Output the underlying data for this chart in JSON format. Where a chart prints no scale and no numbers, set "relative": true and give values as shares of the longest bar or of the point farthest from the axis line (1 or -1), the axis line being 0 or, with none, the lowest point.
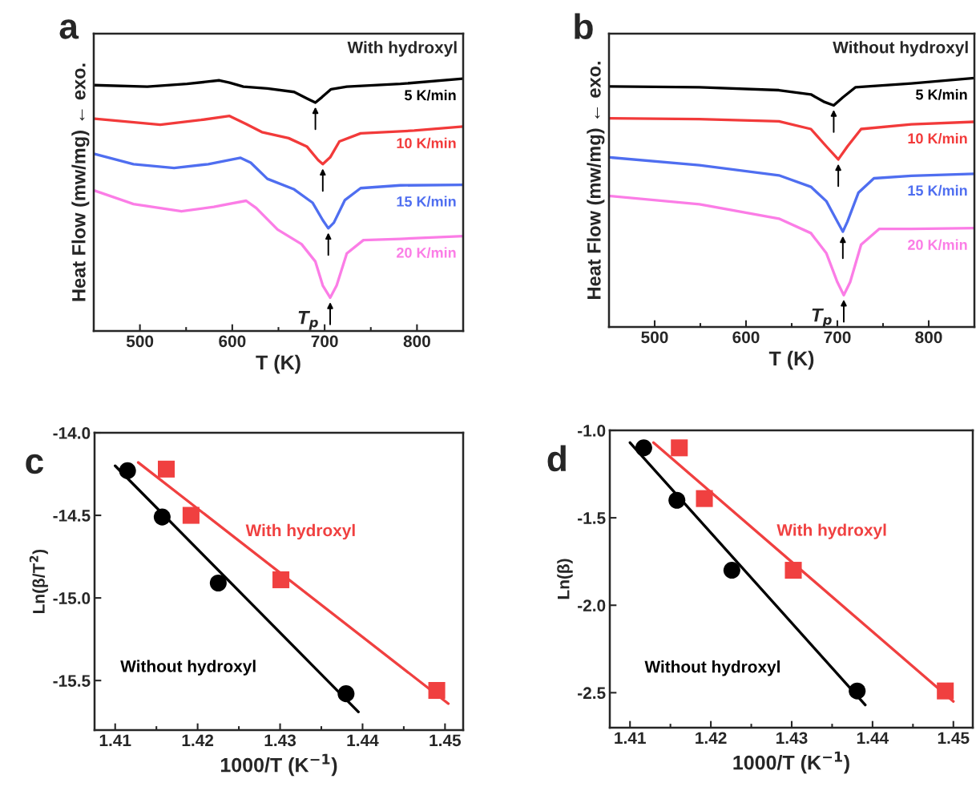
{
  "chart_data": [
    {
      "type": "line",
      "title": "a",
      "xlabel": "T (K)",
      "ylabel": "Heat Flow (mw/mg) ← exo.",
      "relative": true,
      "tick_labels": "x",
      "xlim": [
        450,
        850
      ],
      "xticks": [
        500,
        600,
        700,
        800
      ],
      "line_style": "solid",
      "annotations": [
        "With hydroxyl",
        {
          "text": "T$_{p}$",
          "x": 706,
          "y": 0.132
        }
      ],
      "series": [
        {
          "name": "5 K/min",
          "color": "#000000",
          "x": [
            450,
            508,
            551,
            586,
            597,
            612,
            638,
            667,
            681,
            690,
            697,
            707,
            724,
            782,
            850
          ],
          "values": [
            0.974,
            0.968,
            0.979,
            0.993,
            0.984,
            0.968,
            0.961,
            0.947,
            0.921,
            0.905,
            0.926,
            0.958,
            0.968,
            0.979,
            1.0
          ]
        },
        {
          "name": "10 K/min",
          "color": "#f23a3a",
          "x": [
            451,
            522,
            566,
            597,
            615,
            632,
            661,
            681,
            693,
            698,
            706,
            716,
            739,
            797,
            850
          ],
          "values": [
            0.841,
            0.817,
            0.836,
            0.852,
            0.82,
            0.788,
            0.764,
            0.73,
            0.677,
            0.661,
            0.688,
            0.751,
            0.783,
            0.794,
            0.81
          ]
        },
        {
          "name": "15 K/min",
          "color": "#4f6ef0",
          "x": [
            451,
            493,
            537,
            574,
            609,
            620,
            638,
            667,
            687,
            698,
            704,
            710,
            722,
            739,
            782,
            850
          ],
          "values": [
            0.701,
            0.661,
            0.646,
            0.661,
            0.686,
            0.667,
            0.603,
            0.561,
            0.508,
            0.439,
            0.407,
            0.429,
            0.519,
            0.566,
            0.577,
            0.579
          ]
        },
        {
          "name": "20 K/min",
          "color": "#fb7de6",
          "x": [
            451,
            493,
            545,
            580,
            615,
            626,
            649,
            675,
            690,
            698,
            706,
            713,
            724,
            742,
            782,
            850
          ],
          "values": [
            0.556,
            0.503,
            0.474,
            0.492,
            0.516,
            0.487,
            0.402,
            0.344,
            0.275,
            0.18,
            0.132,
            0.18,
            0.307,
            0.36,
            0.365,
            0.376
          ]
        }
      ]
    },
    {
      "type": "line",
      "title": "b",
      "xlabel": "T (K)",
      "ylabel": "Heat Flow (mw/mg) ← exo.",
      "relative": true,
      "tick_labels": "x",
      "xlim": [
        450,
        850
      ],
      "xticks": [
        500,
        600,
        700,
        800
      ],
      "line_style": "solid",
      "annotations": [
        "Without hydroxyl",
        {
          "text": "T$_{p}$",
          "x": 707,
          "y": 0.128
        }
      ],
      "series": [
        {
          "name": "5 K/min",
          "color": "#000000",
          "x": [
            451,
            549,
            636,
            671,
            685,
            696,
            706,
            720,
            781,
            850
          ],
          "values": [
            0.966,
            0.963,
            0.951,
            0.934,
            0.905,
            0.89,
            0.922,
            0.963,
            0.978,
            1.0
          ]
        },
        {
          "name": "10 K/min",
          "color": "#f23a3a",
          "x": [
            451,
            549,
            636,
            671,
            688,
            701,
            711,
            726,
            781,
            850
          ],
          "values": [
            0.838,
            0.835,
            0.826,
            0.795,
            0.725,
            0.673,
            0.725,
            0.795,
            0.814,
            0.824
          ]
        },
        {
          "name": "15 K/min",
          "color": "#4f6ef0",
          "x": [
            451,
            549,
            636,
            671,
            688,
            700,
            706,
            711,
            723,
            740,
            781,
            850
          ],
          "values": [
            0.681,
            0.65,
            0.609,
            0.563,
            0.505,
            0.423,
            0.383,
            0.423,
            0.539,
            0.597,
            0.607,
            0.615
          ]
        },
        {
          "name": "20 K/min",
          "color": "#fb7de6",
          "x": [
            451,
            549,
            636,
            671,
            688,
            700,
            707,
            714,
            726,
            746,
            781,
            850
          ],
          "values": [
            0.526,
            0.493,
            0.435,
            0.377,
            0.296,
            0.18,
            0.128,
            0.18,
            0.331,
            0.394,
            0.394,
            0.397
          ]
        }
      ]
    },
    {
      "type": "scatter",
      "title": "c",
      "xlabel": "1000/T (K$^{−1}$)",
      "ylabel": "Ln(β/T$^{2}$)",
      "xlim": [
        1.4075,
        1.4522
      ],
      "xticks": [
        1.41,
        1.42,
        1.43,
        1.44,
        1.45
      ],
      "ylim": [
        -15.8,
        -14.0
      ],
      "yticks": [
        {
          "value": -14.0,
          "label": "-14.0"
        },
        {
          "value": -14.5,
          "label": "-14.5"
        },
        {
          "value": -15.0,
          "label": "-15.0"
        },
        {
          "value": -15.5,
          "label": "-15.5"
        }
      ],
      "series": [
        {
          "name": "Without hydroxyl",
          "color": "#000000",
          "marker": "circle",
          "x": [
            1.4115,
            1.4157,
            1.4225,
            1.438
          ],
          "values": [
            -14.23,
            -14.51,
            -14.91,
            -15.58
          ]
        },
        {
          "name": "With hydroxyl",
          "color": "#f04040",
          "marker": "square",
          "x": [
            1.4162,
            1.4192,
            1.4301,
            1.449
          ],
          "values": [
            -14.22,
            -14.5,
            -14.89,
            -15.56
          ]
        },
        {
          "type": "line",
          "color": "#000000",
          "x": [
            1.41,
            1.4395
          ],
          "values": [
            -14.2,
            -15.69
          ]
        },
        {
          "type": "line",
          "color": "#f04040",
          "x": [
            1.4128,
            1.4504
          ],
          "values": [
            -14.18,
            -15.64
          ]
        }
      ]
    },
    {
      "type": "scatter",
      "title": "d",
      "xlabel": "1000/T (K$^{−1}$)",
      "ylabel": "Ln(β)",
      "xlim": [
        1.4075,
        1.4524
      ],
      "xticks": [
        1.41,
        1.42,
        1.43,
        1.44,
        1.45
      ],
      "ylim": [
        -2.7,
        -1.0
      ],
      "yticks": [
        {
          "value": -1.0,
          "label": "-1.0"
        },
        {
          "value": -1.5,
          "label": "-1.5"
        },
        {
          "value": -2.0,
          "label": "-2.0"
        },
        {
          "value": -2.5,
          "label": "-2.5"
        }
      ],
      "series": [
        {
          "name": "Without hydroxyl",
          "color": "#000000",
          "marker": "circle",
          "x": [
            1.4117,
            1.4158,
            1.4226,
            1.4381
          ],
          "values": [
            -1.1,
            -1.4,
            -1.8,
            -2.49
          ]
        },
        {
          "name": "With hydroxyl",
          "color": "#f04040",
          "marker": "square",
          "x": [
            1.4161,
            1.4192,
            1.4302,
            1.449
          ],
          "values": [
            -1.1,
            -1.39,
            -1.8,
            -2.49
          ]
        },
        {
          "type": "line",
          "color": "#000000",
          "x": [
            1.41,
            1.4391
          ],
          "values": [
            -1.07,
            -2.57
          ]
        },
        {
          "type": "line",
          "color": "#f04040",
          "x": [
            1.4129,
            1.45
          ],
          "values": [
            -1.07,
            -2.55
          ]
        }
      ]
    }
  ]
}
